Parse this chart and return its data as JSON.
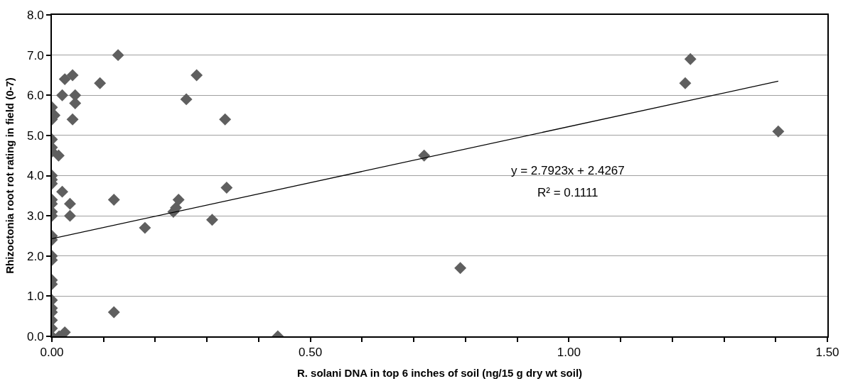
{
  "chart_data": {
    "type": "scatter",
    "xlabel": "R. solani DNA in top 6 inches of soil (ng/15 g dry wt soil)",
    "ylabel": "Rhizoctonia root rot rating in field (0-7)",
    "annotations": [
      "y = 2.7923x + 2.4267",
      "R² = 0.1111"
    ],
    "marker": "diamond",
    "grid": "y",
    "xlim": [
      0,
      1.5
    ],
    "ylim": [
      0,
      8
    ],
    "xticks": [
      {
        "value": 0,
        "label": "0.00"
      },
      {
        "value": 0.1,
        "label": null
      },
      {
        "value": 0.2,
        "label": null
      },
      {
        "value": 0.3,
        "label": null
      },
      {
        "value": 0.4,
        "label": null
      },
      {
        "value": 0.5,
        "label": "0.50"
      },
      {
        "value": 0.6,
        "label": null
      },
      {
        "value": 0.7,
        "label": null
      },
      {
        "value": 0.8,
        "label": null
      },
      {
        "value": 0.9,
        "label": null
      },
      {
        "value": 1.0,
        "label": "1.00"
      },
      {
        "value": 1.1,
        "label": null
      },
      {
        "value": 1.2,
        "label": null
      },
      {
        "value": 1.3,
        "label": null
      },
      {
        "value": 1.4,
        "label": null
      },
      {
        "value": 1.5,
        "label": "1.50"
      }
    ],
    "yticks": [
      {
        "value": 0,
        "label": "0.0"
      },
      {
        "value": 1,
        "label": "1.0"
      },
      {
        "value": 2,
        "label": "2.0"
      },
      {
        "value": 3,
        "label": "3.0"
      },
      {
        "value": 4,
        "label": "4.0"
      },
      {
        "value": 5,
        "label": "5.0"
      },
      {
        "value": 6,
        "label": "6.0"
      },
      {
        "value": 7,
        "label": "7.0"
      },
      {
        "value": 8,
        "label": "8.0"
      }
    ],
    "series": [
      {
        "color": "#5f5f5f",
        "x": [
          0,
          0,
          0,
          0,
          0,
          0,
          0,
          0,
          0,
          0,
          0,
          0,
          0,
          0,
          0,
          0,
          0,
          0,
          0,
          0,
          0,
          0,
          0,
          0,
          0.014,
          0.025,
          0.005,
          0.013,
          0.02,
          0.035,
          0.035,
          0.02,
          0.025,
          0.04,
          0.045,
          0.045,
          0.04,
          0.093,
          0.128,
          0.12,
          0.12,
          0.18,
          0.235,
          0.24,
          0.245,
          0.26,
          0.28,
          0.31,
          0.335,
          0.338,
          0.437,
          0.72,
          0.79,
          1.225,
          1.235,
          1.405
        ],
        "values": [
          5.7,
          5.4,
          4.9,
          4.7,
          4.6,
          4.0,
          3.9,
          3.8,
          3.4,
          3.3,
          3.1,
          3.0,
          2.5,
          2.4,
          2.0,
          1.9,
          1.4,
          1.3,
          0.9,
          0.7,
          0.6,
          0.4,
          0.2,
          0.0,
          0.0,
          0.1,
          5.5,
          4.5,
          3.6,
          3.3,
          3.0,
          6.0,
          6.4,
          6.5,
          6.0,
          5.8,
          5.4,
          6.3,
          7.0,
          3.4,
          0.6,
          2.7,
          3.1,
          3.2,
          3.4,
          5.9,
          6.5,
          2.9,
          5.4,
          3.7,
          0.0,
          4.5,
          1.7,
          6.3,
          6.9,
          5.1
        ]
      },
      {
        "type": "line",
        "marker": "none",
        "color": "#000000",
        "x": [
          0,
          1.405
        ],
        "values": [
          2.43,
          6.35
        ]
      }
    ]
  }
}
